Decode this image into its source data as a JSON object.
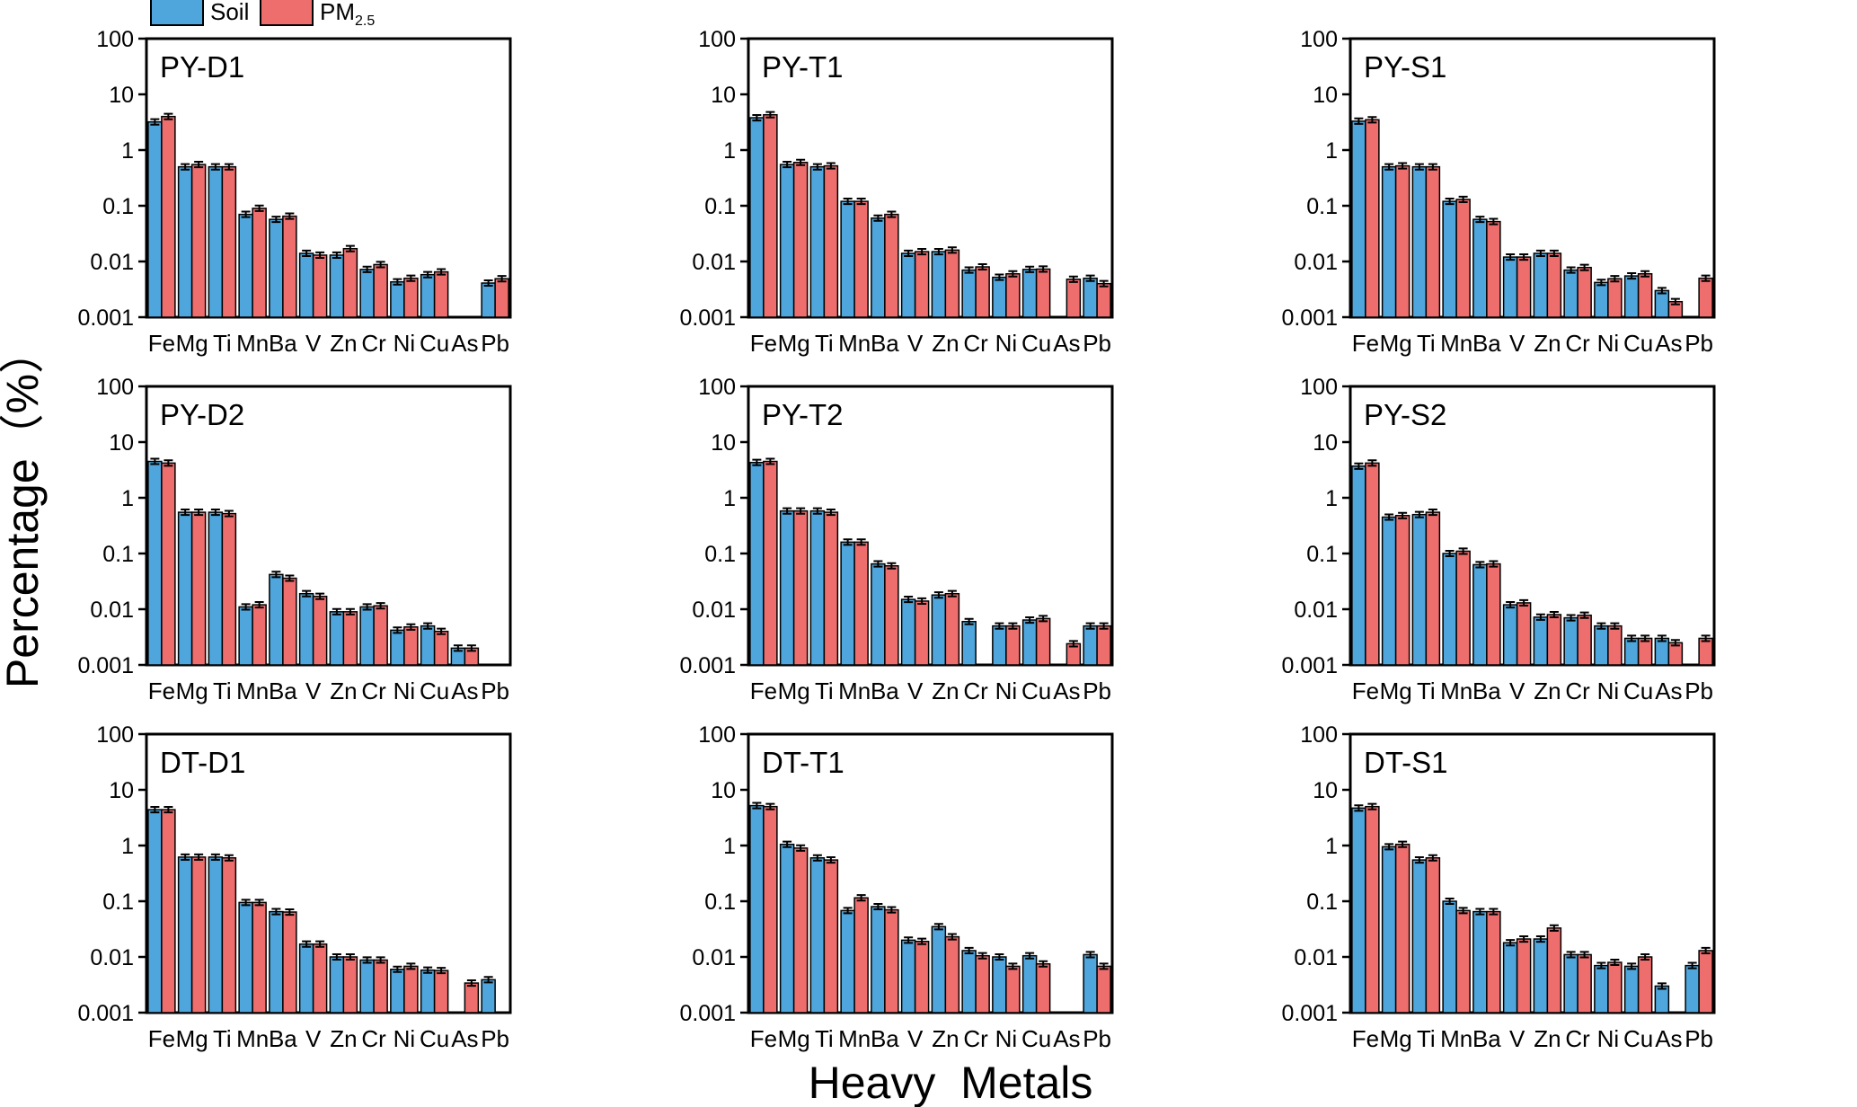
{
  "figure": {
    "ylabel": "Percentage（%）",
    "xlabel": "Heavy  Metals",
    "legend": [
      {
        "name": "Soil",
        "color": "#4ea6dc"
      },
      {
        "name": "PM",
        "sub": "2.5",
        "color": "#ee6e6e"
      }
    ],
    "legend_placement": "top-left"
  },
  "chart_data": [
    {
      "type": "bar",
      "title": "PY-D1",
      "yscale": "log",
      "ylim": [
        0.001,
        100
      ],
      "yticks": [
        "0.001",
        "0.01",
        "0.1",
        "1",
        "10",
        "100"
      ],
      "categories": [
        "Fe",
        "Mg",
        "Ti",
        "Mn",
        "Ba",
        "V",
        "Zn",
        "Cr",
        "Ni",
        "Cu",
        "As",
        "Pb"
      ],
      "series": [
        {
          "name": "Soil",
          "values": [
            3.2,
            0.5,
            0.5,
            0.07,
            0.057,
            0.014,
            0.013,
            0.0072,
            0.0043,
            0.0058,
            null,
            0.0041
          ]
        },
        {
          "name": "PM2.5",
          "values": [
            4.0,
            0.55,
            0.5,
            0.09,
            0.065,
            0.013,
            0.017,
            0.0088,
            0.005,
            0.0065,
            null,
            0.0049
          ]
        }
      ]
    },
    {
      "type": "bar",
      "title": "PY-T1",
      "yscale": "log",
      "ylim": [
        0.001,
        100
      ],
      "yticks": [
        "0.001",
        "0.01",
        "0.1",
        "1",
        "10",
        "100"
      ],
      "categories": [
        "Fe",
        "Mg",
        "Ti",
        "Mn",
        "Ba",
        "V",
        "Zn",
        "Cr",
        "Ni",
        "Cu",
        "As",
        "Pb"
      ],
      "series": [
        {
          "name": "Soil",
          "values": [
            3.8,
            0.55,
            0.5,
            0.12,
            0.06,
            0.014,
            0.015,
            0.007,
            0.0052,
            0.0072,
            null,
            0.005
          ]
        },
        {
          "name": "PM2.5",
          "values": [
            4.3,
            0.6,
            0.52,
            0.12,
            0.07,
            0.015,
            0.016,
            0.008,
            0.006,
            0.0073,
            0.0048,
            0.004
          ]
        }
      ]
    },
    {
      "type": "bar",
      "title": "PY-S1",
      "yscale": "log",
      "ylim": [
        0.001,
        100
      ],
      "yticks": [
        "0.001",
        "0.01",
        "0.1",
        "1",
        "10",
        "100"
      ],
      "categories": [
        "Fe",
        "Mg",
        "Ti",
        "Mn",
        "Ba",
        "V",
        "Zn",
        "Cr",
        "Ni",
        "Cu",
        "As",
        "Pb"
      ],
      "series": [
        {
          "name": "Soil",
          "values": [
            3.3,
            0.5,
            0.5,
            0.12,
            0.057,
            0.012,
            0.014,
            0.007,
            0.0042,
            0.0055,
            0.003,
            null
          ]
        },
        {
          "name": "PM2.5",
          "values": [
            3.5,
            0.52,
            0.5,
            0.13,
            0.052,
            0.012,
            0.014,
            0.0078,
            0.0049,
            0.006,
            0.0019,
            0.005
          ]
        }
      ]
    },
    {
      "type": "bar",
      "title": "PY-D2",
      "yscale": "log",
      "ylim": [
        0.001,
        100
      ],
      "yticks": [
        "0.001",
        "0.01",
        "0.1",
        "1",
        "10",
        "100"
      ],
      "categories": [
        "Fe",
        "Mg",
        "Ti",
        "Mn",
        "Ba",
        "V",
        "Zn",
        "Cr",
        "Ni",
        "Cu",
        "As",
        "Pb"
      ],
      "series": [
        {
          "name": "Soil",
          "values": [
            4.5,
            0.55,
            0.55,
            0.011,
            0.042,
            0.019,
            0.009,
            0.011,
            0.0042,
            0.005,
            0.002,
            null
          ]
        },
        {
          "name": "PM2.5",
          "values": [
            4.2,
            0.55,
            0.52,
            0.012,
            0.036,
            0.017,
            0.009,
            0.0115,
            0.0048,
            0.004,
            0.002,
            null
          ]
        }
      ]
    },
    {
      "type": "bar",
      "title": "PY-T2",
      "yscale": "log",
      "ylim": [
        0.001,
        100
      ],
      "yticks": [
        "0.001",
        "0.01",
        "0.1",
        "1",
        "10",
        "100"
      ],
      "categories": [
        "Fe",
        "Mg",
        "Ti",
        "Mn",
        "Ba",
        "V",
        "Zn",
        "Cr",
        "Ni",
        "Cu",
        "As",
        "Pb"
      ],
      "series": [
        {
          "name": "Soil",
          "values": [
            4.3,
            0.58,
            0.58,
            0.16,
            0.065,
            0.015,
            0.018,
            0.006,
            0.005,
            0.0064,
            null,
            0.005
          ]
        },
        {
          "name": "PM2.5",
          "values": [
            4.5,
            0.58,
            0.55,
            0.16,
            0.06,
            0.014,
            0.019,
            null,
            0.005,
            0.0068,
            0.0024,
            0.005
          ]
        }
      ]
    },
    {
      "type": "bar",
      "title": "PY-S2",
      "yscale": "log",
      "ylim": [
        0.001,
        100
      ],
      "yticks": [
        "0.001",
        "0.01",
        "0.1",
        "1",
        "10",
        "100"
      ],
      "categories": [
        "Fe",
        "Mg",
        "Ti",
        "Mn",
        "Ba",
        "V",
        "Zn",
        "Cr",
        "Ni",
        "Cu",
        "As",
        "Pb"
      ],
      "series": [
        {
          "name": "Soil",
          "values": [
            3.7,
            0.45,
            0.5,
            0.1,
            0.063,
            0.012,
            0.0072,
            0.007,
            0.005,
            0.003,
            0.003,
            null
          ]
        },
        {
          "name": "PM2.5",
          "values": [
            4.2,
            0.48,
            0.55,
            0.11,
            0.065,
            0.013,
            0.008,
            0.0078,
            0.005,
            0.003,
            0.0025,
            0.003
          ]
        }
      ]
    },
    {
      "type": "bar",
      "title": "DT-D1",
      "yscale": "log",
      "ylim": [
        0.001,
        100
      ],
      "yticks": [
        "0.001",
        "0.01",
        "0.1",
        "1",
        "10",
        "100"
      ],
      "categories": [
        "Fe",
        "Mg",
        "Ti",
        "Mn",
        "Ba",
        "V",
        "Zn",
        "Cr",
        "Ni",
        "Cu",
        "As",
        "Pb"
      ],
      "series": [
        {
          "name": "Soil",
          "values": [
            4.4,
            0.62,
            0.62,
            0.095,
            0.065,
            0.017,
            0.01,
            0.0088,
            0.006,
            0.0058,
            null,
            0.0039
          ]
        },
        {
          "name": "PM2.5",
          "values": [
            4.4,
            0.62,
            0.6,
            0.095,
            0.064,
            0.017,
            0.01,
            0.0088,
            0.0068,
            0.0057,
            0.0034,
            null
          ]
        }
      ]
    },
    {
      "type": "bar",
      "title": "DT-T1",
      "yscale": "log",
      "ylim": [
        0.001,
        100
      ],
      "yticks": [
        "0.001",
        "0.01",
        "0.1",
        "1",
        "10",
        "100"
      ],
      "categories": [
        "Fe",
        "Mg",
        "Ti",
        "Mn",
        "Ba",
        "V",
        "Zn",
        "Cr",
        "Ni",
        "Cu",
        "As",
        "Pb"
      ],
      "series": [
        {
          "name": "Soil",
          "values": [
            5.2,
            1.05,
            0.6,
            0.068,
            0.08,
            0.02,
            0.035,
            0.013,
            0.01,
            0.0105,
            null,
            0.011
          ]
        },
        {
          "name": "PM2.5",
          "values": [
            5.0,
            0.9,
            0.55,
            0.115,
            0.07,
            0.019,
            0.023,
            0.0105,
            0.0068,
            0.0075,
            null,
            0.0068
          ]
        }
      ]
    },
    {
      "type": "bar",
      "title": "DT-S1",
      "yscale": "log",
      "ylim": [
        0.001,
        100
      ],
      "yticks": [
        "0.001",
        "0.01",
        "0.1",
        "1",
        "10",
        "100"
      ],
      "categories": [
        "Fe",
        "Mg",
        "Ti",
        "Mn",
        "Ba",
        "V",
        "Zn",
        "Cr",
        "Ni",
        "Cu",
        "As",
        "Pb"
      ],
      "series": [
        {
          "name": "Soil",
          "values": [
            4.7,
            0.95,
            0.55,
            0.1,
            0.065,
            0.018,
            0.021,
            0.011,
            0.007,
            0.0068,
            0.003,
            0.007
          ]
        },
        {
          "name": "PM2.5",
          "values": [
            5.0,
            1.05,
            0.6,
            0.068,
            0.065,
            0.021,
            0.033,
            0.011,
            0.008,
            0.01,
            null,
            0.013
          ]
        }
      ]
    }
  ]
}
